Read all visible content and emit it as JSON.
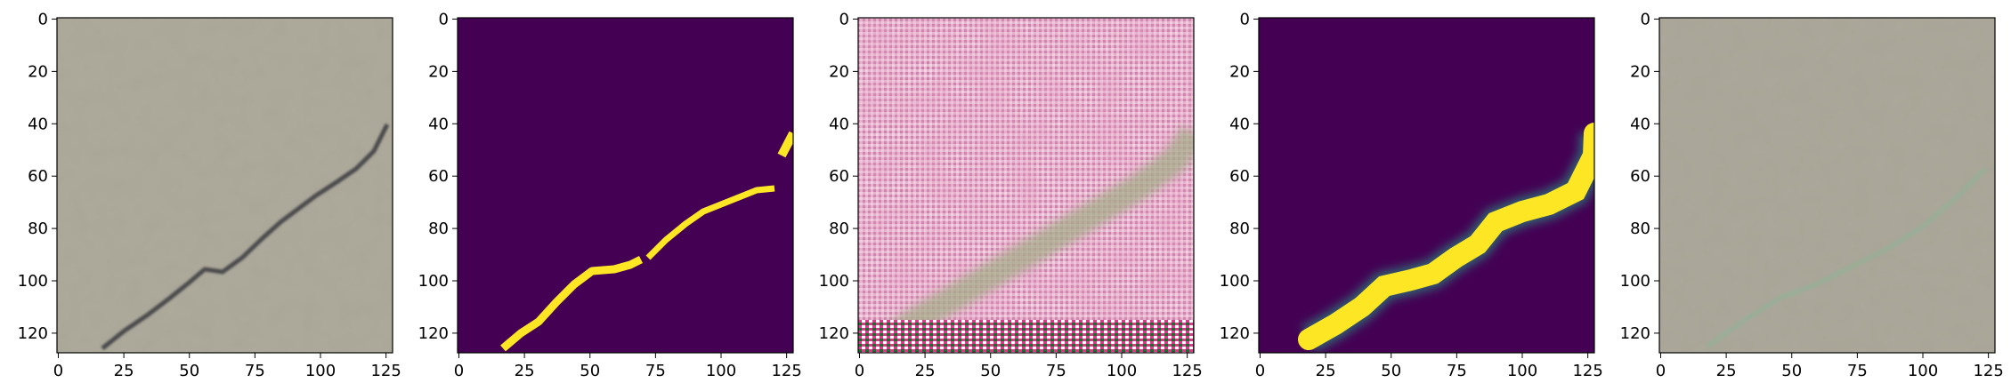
{
  "figure": {
    "panel_count": 5,
    "tick_values": [
      0,
      20,
      40,
      60,
      80,
      100,
      120
    ],
    "x_tick_values": [
      0,
      25,
      50,
      75,
      100,
      125
    ],
    "y_tick_values": [
      0,
      20,
      40,
      60,
      80,
      100,
      120
    ],
    "image_size": 128
  },
  "panels": [
    {
      "name": "original-image",
      "description": "Concrete surface with a thin dark crack running diagonally from lower-left to upper-right."
    },
    {
      "name": "ground-truth-mask",
      "description": "Binary segmentation mask: yellow crack pixels on dark purple background."
    },
    {
      "name": "generated-image",
      "description": "Pink/magenta noisy reconstruction with faint greenish crack band and colorful artifacts at bottom."
    },
    {
      "name": "predicted-mask",
      "description": "Smooth predicted crack probability map: bright yellow band on dark purple background."
    },
    {
      "name": "reconstructed-image",
      "description": "Gray concrete reconstruction with faint colored crack trace."
    }
  ],
  "colors": {
    "mask_background": "#440154",
    "mask_foreground": "#fde725",
    "concrete": "#a9a595",
    "generated_pink": "#d497b5",
    "axis": "#000000"
  }
}
